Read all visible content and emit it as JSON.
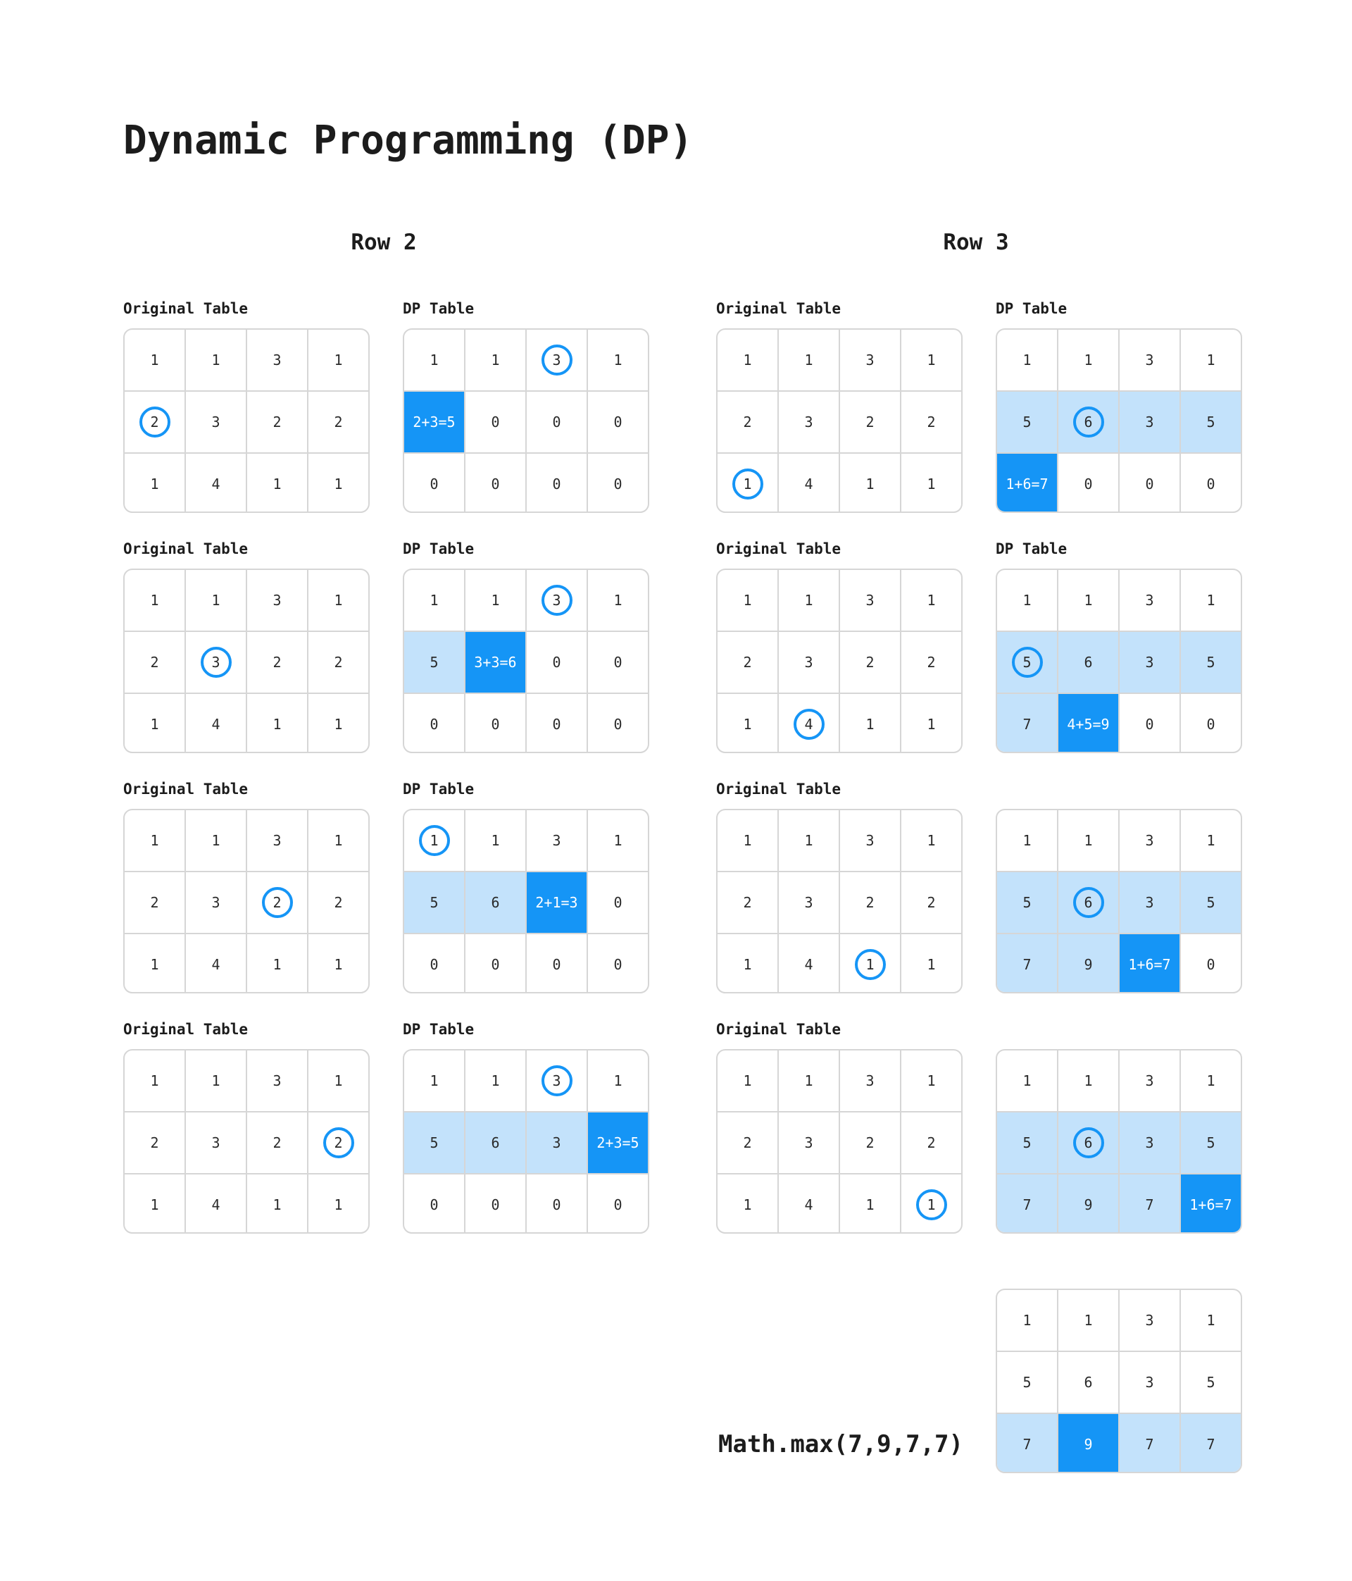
{
  "title": "Dynamic Programming (DP)",
  "columns": [
    {
      "heading": "Row 2",
      "steps": [
        {
          "original": {
            "label": "Original Table",
            "rows": [
              [
                "1",
                "1",
                "3",
                "1"
              ],
              [
                "2",
                "3",
                "2",
                "2"
              ],
              [
                "1",
                "4",
                "1",
                "1"
              ]
            ],
            "circle": [
              1,
              0
            ]
          },
          "dp": {
            "label": "DP Table",
            "rows": [
              [
                "1",
                "1",
                "3",
                "1"
              ],
              [
                "2+3=5",
                "0",
                "0",
                "0"
              ],
              [
                "0",
                "0",
                "0",
                "0"
              ]
            ],
            "circle": [
              0,
              2
            ],
            "light": [],
            "dark": [
              [
                1,
                0
              ]
            ]
          }
        },
        {
          "original": {
            "label": "Original Table",
            "rows": [
              [
                "1",
                "1",
                "3",
                "1"
              ],
              [
                "2",
                "3",
                "2",
                "2"
              ],
              [
                "1",
                "4",
                "1",
                "1"
              ]
            ],
            "circle": [
              1,
              1
            ]
          },
          "dp": {
            "label": "DP Table",
            "rows": [
              [
                "1",
                "1",
                "3",
                "1"
              ],
              [
                "5",
                "3+3=6",
                "0",
                "0"
              ],
              [
                "0",
                "0",
                "0",
                "0"
              ]
            ],
            "circle": [
              0,
              2
            ],
            "light": [
              [
                1,
                0
              ]
            ],
            "dark": [
              [
                1,
                1
              ]
            ]
          }
        },
        {
          "original": {
            "label": "Original Table",
            "rows": [
              [
                "1",
                "1",
                "3",
                "1"
              ],
              [
                "2",
                "3",
                "2",
                "2"
              ],
              [
                "1",
                "4",
                "1",
                "1"
              ]
            ],
            "circle": [
              1,
              2
            ]
          },
          "dp": {
            "label": "DP Table",
            "rows": [
              [
                "1",
                "1",
                "3",
                "1"
              ],
              [
                "5",
                "6",
                "2+1=3",
                "0"
              ],
              [
                "0",
                "0",
                "0",
                "0"
              ]
            ],
            "circle": [
              0,
              0
            ],
            "light": [
              [
                1,
                0
              ],
              [
                1,
                1
              ]
            ],
            "dark": [
              [
                1,
                2
              ]
            ]
          }
        },
        {
          "original": {
            "label": "Original Table",
            "rows": [
              [
                "1",
                "1",
                "3",
                "1"
              ],
              [
                "2",
                "3",
                "2",
                "2"
              ],
              [
                "1",
                "4",
                "1",
                "1"
              ]
            ],
            "circle": [
              1,
              3
            ]
          },
          "dp": {
            "label": "DP Table",
            "rows": [
              [
                "1",
                "1",
                "3",
                "1"
              ],
              [
                "5",
                "6",
                "3",
                "2+3=5"
              ],
              [
                "0",
                "0",
                "0",
                "0"
              ]
            ],
            "circle": [
              0,
              2
            ],
            "light": [
              [
                1,
                0
              ],
              [
                1,
                1
              ],
              [
                1,
                2
              ]
            ],
            "dark": [
              [
                1,
                3
              ]
            ]
          }
        }
      ]
    },
    {
      "heading": "Row 3",
      "steps": [
        {
          "original": {
            "label": "Original Table",
            "rows": [
              [
                "1",
                "1",
                "3",
                "1"
              ],
              [
                "2",
                "3",
                "2",
                "2"
              ],
              [
                "1",
                "4",
                "1",
                "1"
              ]
            ],
            "circle": [
              2,
              0
            ]
          },
          "dp": {
            "label": "DP Table",
            "rows": [
              [
                "1",
                "1",
                "3",
                "1"
              ],
              [
                "5",
                "6",
                "3",
                "5"
              ],
              [
                "1+6=7",
                "0",
                "0",
                "0"
              ]
            ],
            "circle": [
              1,
              1
            ],
            "light": [
              [
                1,
                0
              ],
              [
                1,
                1
              ],
              [
                1,
                2
              ],
              [
                1,
                3
              ]
            ],
            "dark": [
              [
                2,
                0
              ]
            ]
          }
        },
        {
          "original": {
            "label": "Original Table",
            "rows": [
              [
                "1",
                "1",
                "3",
                "1"
              ],
              [
                "2",
                "3",
                "2",
                "2"
              ],
              [
                "1",
                "4",
                "1",
                "1"
              ]
            ],
            "circle": [
              2,
              1
            ]
          },
          "dp": {
            "label": "DP Table",
            "rows": [
              [
                "1",
                "1",
                "3",
                "1"
              ],
              [
                "5",
                "6",
                "3",
                "5"
              ],
              [
                "7",
                "4+5=9",
                "0",
                "0"
              ]
            ],
            "circle": [
              1,
              0
            ],
            "light": [
              [
                1,
                0
              ],
              [
                1,
                1
              ],
              [
                1,
                2
              ],
              [
                1,
                3
              ],
              [
                2,
                0
              ]
            ],
            "dark": [
              [
                2,
                1
              ]
            ]
          }
        },
        {
          "original": {
            "label": "Original Table",
            "rows": [
              [
                "1",
                "1",
                "3",
                "1"
              ],
              [
                "2",
                "3",
                "2",
                "2"
              ],
              [
                "1",
                "4",
                "1",
                "1"
              ]
            ],
            "circle": [
              2,
              2
            ]
          },
          "dp": {
            "label": "",
            "rows": [
              [
                "1",
                "1",
                "3",
                "1"
              ],
              [
                "5",
                "6",
                "3",
                "5"
              ],
              [
                "7",
                "9",
                "1+6=7",
                "0"
              ]
            ],
            "circle": [
              1,
              1
            ],
            "light": [
              [
                1,
                0
              ],
              [
                1,
                1
              ],
              [
                1,
                2
              ],
              [
                1,
                3
              ],
              [
                2,
                0
              ],
              [
                2,
                1
              ]
            ],
            "dark": [
              [
                2,
                2
              ]
            ]
          }
        },
        {
          "original": {
            "label": "Original Table",
            "rows": [
              [
                "1",
                "1",
                "3",
                "1"
              ],
              [
                "2",
                "3",
                "2",
                "2"
              ],
              [
                "1",
                "4",
                "1",
                "1"
              ]
            ],
            "circle": [
              2,
              3
            ]
          },
          "dp": {
            "label": "",
            "rows": [
              [
                "1",
                "1",
                "3",
                "1"
              ],
              [
                "5",
                "6",
                "3",
                "5"
              ],
              [
                "7",
                "9",
                "7",
                "1+6=7"
              ]
            ],
            "circle": [
              1,
              1
            ],
            "light": [
              [
                1,
                0
              ],
              [
                1,
                1
              ],
              [
                1,
                2
              ],
              [
                1,
                3
              ],
              [
                2,
                0
              ],
              [
                2,
                1
              ],
              [
                2,
                2
              ]
            ],
            "dark": [
              [
                2,
                3
              ]
            ]
          }
        }
      ]
    }
  ],
  "final": {
    "formula": "Math.max(7,9,7,7)",
    "rows": [
      [
        "1",
        "1",
        "3",
        "1"
      ],
      [
        "5",
        "6",
        "3",
        "5"
      ],
      [
        "7",
        "9",
        "7",
        "7"
      ]
    ],
    "light": [
      [
        2,
        0
      ],
      [
        2,
        2
      ],
      [
        2,
        3
      ]
    ],
    "dark": [
      [
        2,
        1
      ]
    ]
  }
}
